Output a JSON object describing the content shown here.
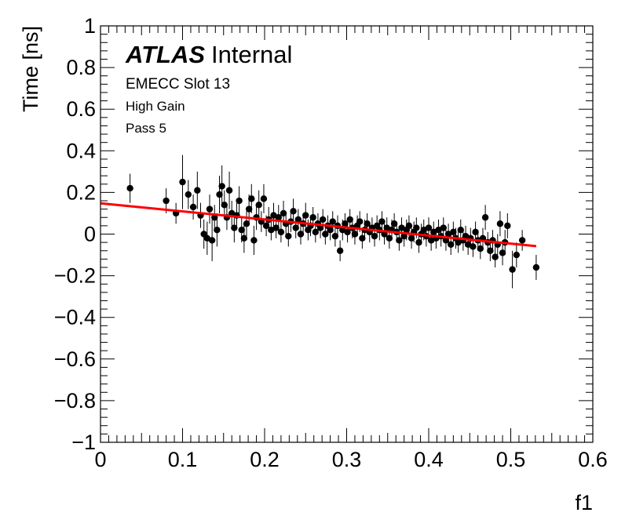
{
  "chart_data": {
    "type": "scatter",
    "title": "",
    "xlabel": "f1",
    "ylabel": "Time [ns]",
    "xlim": [
      0,
      0.6
    ],
    "ylim": [
      -1,
      1
    ],
    "x_ticks": [
      "0",
      "0.1",
      "0.2",
      "0.3",
      "0.4",
      "0.5",
      "0.6"
    ],
    "x_tick_values": [
      0,
      0.1,
      0.2,
      0.3,
      0.4,
      0.5,
      0.6
    ],
    "y_ticks": [
      "−1",
      "−0.8",
      "−0.6",
      "−0.4",
      "−0.2",
      "0",
      "0.2",
      "0.4",
      "0.6",
      "0.8",
      "1"
    ],
    "y_tick_values": [
      -1,
      -0.8,
      -0.6,
      -0.4,
      -0.2,
      0,
      0.2,
      0.4,
      0.6,
      0.8,
      1
    ],
    "annotations": {
      "experiment": "ATLAS",
      "status": "Internal",
      "line1": "EMECC Slot 13",
      "line2": "High Gain",
      "line3": "Pass 5"
    },
    "series": [
      {
        "name": "data",
        "marker_color": "#000000",
        "points": [
          {
            "x": 0.036,
            "y": 0.22,
            "err": 0.07
          },
          {
            "x": 0.08,
            "y": 0.16,
            "err": 0.06
          },
          {
            "x": 0.092,
            "y": 0.1,
            "err": 0.05
          },
          {
            "x": 0.1,
            "y": 0.25,
            "err": 0.13
          },
          {
            "x": 0.107,
            "y": 0.19,
            "err": 0.07
          },
          {
            "x": 0.113,
            "y": 0.13,
            "err": 0.06
          },
          {
            "x": 0.118,
            "y": 0.21,
            "err": 0.09
          },
          {
            "x": 0.122,
            "y": 0.09,
            "err": 0.06
          },
          {
            "x": 0.126,
            "y": 0.0,
            "err": 0.07
          },
          {
            "x": 0.13,
            "y": -0.02,
            "err": 0.08
          },
          {
            "x": 0.133,
            "y": 0.12,
            "err": 0.07
          },
          {
            "x": 0.136,
            "y": -0.03,
            "err": 0.1
          },
          {
            "x": 0.139,
            "y": 0.08,
            "err": 0.06
          },
          {
            "x": 0.142,
            "y": 0.02,
            "err": 0.08
          },
          {
            "x": 0.145,
            "y": 0.19,
            "err": 0.09
          },
          {
            "x": 0.148,
            "y": 0.23,
            "err": 0.1
          },
          {
            "x": 0.151,
            "y": 0.14,
            "err": 0.07
          },
          {
            "x": 0.154,
            "y": 0.08,
            "err": 0.06
          },
          {
            "x": 0.157,
            "y": 0.21,
            "err": 0.09
          },
          {
            "x": 0.16,
            "y": 0.1,
            "err": 0.06
          },
          {
            "x": 0.163,
            "y": 0.03,
            "err": 0.07
          },
          {
            "x": 0.166,
            "y": 0.09,
            "err": 0.06
          },
          {
            "x": 0.169,
            "y": 0.16,
            "err": 0.07
          },
          {
            "x": 0.172,
            "y": 0.02,
            "err": 0.06
          },
          {
            "x": 0.175,
            "y": -0.02,
            "err": 0.07
          },
          {
            "x": 0.178,
            "y": 0.05,
            "err": 0.06
          },
          {
            "x": 0.181,
            "y": 0.12,
            "err": 0.07
          },
          {
            "x": 0.184,
            "y": 0.17,
            "err": 0.07
          },
          {
            "x": 0.187,
            "y": -0.03,
            "err": 0.07
          },
          {
            "x": 0.19,
            "y": 0.08,
            "err": 0.06
          },
          {
            "x": 0.193,
            "y": 0.14,
            "err": 0.07
          },
          {
            "x": 0.196,
            "y": 0.06,
            "err": 0.05
          },
          {
            "x": 0.199,
            "y": 0.17,
            "err": 0.07
          },
          {
            "x": 0.202,
            "y": 0.04,
            "err": 0.05
          },
          {
            "x": 0.205,
            "y": 0.07,
            "err": 0.06
          },
          {
            "x": 0.208,
            "y": 0.02,
            "err": 0.05
          },
          {
            "x": 0.211,
            "y": 0.09,
            "err": 0.06
          },
          {
            "x": 0.214,
            "y": 0.03,
            "err": 0.05
          },
          {
            "x": 0.217,
            "y": 0.08,
            "err": 0.06
          },
          {
            "x": 0.22,
            "y": 0.01,
            "err": 0.05
          },
          {
            "x": 0.223,
            "y": 0.1,
            "err": 0.06
          },
          {
            "x": 0.226,
            "y": 0.05,
            "err": 0.05
          },
          {
            "x": 0.229,
            "y": -0.01,
            "err": 0.05
          },
          {
            "x": 0.232,
            "y": 0.06,
            "err": 0.05
          },
          {
            "x": 0.235,
            "y": 0.11,
            "err": 0.06
          },
          {
            "x": 0.238,
            "y": 0.03,
            "err": 0.05
          },
          {
            "x": 0.241,
            "y": 0.07,
            "err": 0.05
          },
          {
            "x": 0.244,
            "y": 0.0,
            "err": 0.05
          },
          {
            "x": 0.247,
            "y": 0.05,
            "err": 0.05
          },
          {
            "x": 0.25,
            "y": 0.09,
            "err": 0.06
          },
          {
            "x": 0.253,
            "y": 0.02,
            "err": 0.05
          },
          {
            "x": 0.256,
            "y": 0.04,
            "err": 0.05
          },
          {
            "x": 0.259,
            "y": 0.08,
            "err": 0.05
          },
          {
            "x": 0.262,
            "y": 0.01,
            "err": 0.05
          },
          {
            "x": 0.265,
            "y": 0.05,
            "err": 0.05
          },
          {
            "x": 0.268,
            "y": 0.03,
            "err": 0.05
          },
          {
            "x": 0.271,
            "y": 0.07,
            "err": 0.05
          },
          {
            "x": 0.274,
            "y": 0.0,
            "err": 0.05
          },
          {
            "x": 0.277,
            "y": 0.04,
            "err": 0.05
          },
          {
            "x": 0.28,
            "y": 0.02,
            "err": 0.05
          },
          {
            "x": 0.283,
            "y": 0.06,
            "err": 0.05
          },
          {
            "x": 0.286,
            "y": -0.01,
            "err": 0.05
          },
          {
            "x": 0.289,
            "y": 0.04,
            "err": 0.05
          },
          {
            "x": 0.292,
            "y": -0.08,
            "err": 0.05
          },
          {
            "x": 0.295,
            "y": 0.02,
            "err": 0.05
          },
          {
            "x": 0.298,
            "y": 0.05,
            "err": 0.05
          },
          {
            "x": 0.301,
            "y": 0.01,
            "err": 0.05
          },
          {
            "x": 0.304,
            "y": 0.07,
            "err": 0.05
          },
          {
            "x": 0.307,
            "y": 0.03,
            "err": 0.05
          },
          {
            "x": 0.31,
            "y": 0.0,
            "err": 0.05
          },
          {
            "x": 0.313,
            "y": 0.04,
            "err": 0.05
          },
          {
            "x": 0.316,
            "y": 0.06,
            "err": 0.05
          },
          {
            "x": 0.319,
            "y": -0.02,
            "err": 0.05
          },
          {
            "x": 0.322,
            "y": 0.02,
            "err": 0.05
          },
          {
            "x": 0.325,
            "y": 0.05,
            "err": 0.05
          },
          {
            "x": 0.328,
            "y": 0.01,
            "err": 0.05
          },
          {
            "x": 0.331,
            "y": 0.03,
            "err": 0.05
          },
          {
            "x": 0.334,
            "y": -0.01,
            "err": 0.05
          },
          {
            "x": 0.337,
            "y": 0.04,
            "err": 0.05
          },
          {
            "x": 0.34,
            "y": 0.02,
            "err": 0.05
          },
          {
            "x": 0.343,
            "y": 0.06,
            "err": 0.05
          },
          {
            "x": 0.346,
            "y": 0.0,
            "err": 0.05
          },
          {
            "x": 0.349,
            "y": 0.03,
            "err": 0.05
          },
          {
            "x": 0.352,
            "y": -0.02,
            "err": 0.05
          },
          {
            "x": 0.355,
            "y": 0.02,
            "err": 0.05
          },
          {
            "x": 0.358,
            "y": 0.05,
            "err": 0.05
          },
          {
            "x": 0.361,
            "y": 0.01,
            "err": 0.05
          },
          {
            "x": 0.364,
            "y": -0.03,
            "err": 0.05
          },
          {
            "x": 0.367,
            "y": 0.03,
            "err": 0.05
          },
          {
            "x": 0.37,
            "y": -0.01,
            "err": 0.05
          },
          {
            "x": 0.373,
            "y": 0.02,
            "err": 0.05
          },
          {
            "x": 0.376,
            "y": 0.04,
            "err": 0.05
          },
          {
            "x": 0.379,
            "y": -0.02,
            "err": 0.05
          },
          {
            "x": 0.382,
            "y": 0.01,
            "err": 0.05
          },
          {
            "x": 0.385,
            "y": 0.03,
            "err": 0.05
          },
          {
            "x": 0.388,
            "y": -0.04,
            "err": 0.05
          },
          {
            "x": 0.391,
            "y": 0.0,
            "err": 0.05
          },
          {
            "x": 0.394,
            "y": 0.02,
            "err": 0.05
          },
          {
            "x": 0.397,
            "y": -0.01,
            "err": 0.05
          },
          {
            "x": 0.4,
            "y": 0.03,
            "err": 0.05
          },
          {
            "x": 0.403,
            "y": -0.03,
            "err": 0.05
          },
          {
            "x": 0.406,
            "y": 0.01,
            "err": 0.05
          },
          {
            "x": 0.409,
            "y": -0.02,
            "err": 0.05
          },
          {
            "x": 0.412,
            "y": 0.02,
            "err": 0.05
          },
          {
            "x": 0.415,
            "y": -0.01,
            "err": 0.05
          },
          {
            "x": 0.418,
            "y": 0.03,
            "err": 0.05
          },
          {
            "x": 0.421,
            "y": -0.03,
            "err": 0.05
          },
          {
            "x": 0.424,
            "y": 0.0,
            "err": 0.05
          },
          {
            "x": 0.427,
            "y": -0.05,
            "err": 0.05
          },
          {
            "x": 0.43,
            "y": 0.01,
            "err": 0.05
          },
          {
            "x": 0.433,
            "y": -0.02,
            "err": 0.05
          },
          {
            "x": 0.436,
            "y": -0.04,
            "err": 0.05
          },
          {
            "x": 0.439,
            "y": 0.02,
            "err": 0.05
          },
          {
            "x": 0.442,
            "y": -0.03,
            "err": 0.05
          },
          {
            "x": 0.445,
            "y": -0.01,
            "err": 0.05
          },
          {
            "x": 0.448,
            "y": -0.05,
            "err": 0.05
          },
          {
            "x": 0.451,
            "y": -0.02,
            "err": 0.05
          },
          {
            "x": 0.454,
            "y": -0.06,
            "err": 0.05
          },
          {
            "x": 0.457,
            "y": 0.01,
            "err": 0.05
          },
          {
            "x": 0.46,
            "y": -0.03,
            "err": 0.05
          },
          {
            "x": 0.463,
            "y": -0.07,
            "err": 0.05
          },
          {
            "x": 0.466,
            "y": -0.02,
            "err": 0.05
          },
          {
            "x": 0.469,
            "y": 0.08,
            "err": 0.06
          },
          {
            "x": 0.472,
            "y": -0.04,
            "err": 0.05
          },
          {
            "x": 0.475,
            "y": -0.08,
            "err": 0.05
          },
          {
            "x": 0.478,
            "y": -0.03,
            "err": 0.05
          },
          {
            "x": 0.481,
            "y": -0.11,
            "err": 0.05
          },
          {
            "x": 0.484,
            "y": -0.05,
            "err": 0.05
          },
          {
            "x": 0.487,
            "y": 0.05,
            "err": 0.06
          },
          {
            "x": 0.49,
            "y": -0.09,
            "err": 0.06
          },
          {
            "x": 0.493,
            "y": -0.04,
            "err": 0.06
          },
          {
            "x": 0.496,
            "y": 0.04,
            "err": 0.06
          },
          {
            "x": 0.502,
            "y": -0.17,
            "err": 0.09
          },
          {
            "x": 0.507,
            "y": -0.1,
            "err": 0.06
          },
          {
            "x": 0.514,
            "y": -0.03,
            "err": 0.05
          },
          {
            "x": 0.531,
            "y": -0.16,
            "err": 0.06
          }
        ]
      }
    ],
    "fit": {
      "type": "linear",
      "color": "#ff0000",
      "x_range": [
        0,
        0.531
      ],
      "y_values": [
        0.148,
        -0.058
      ]
    }
  }
}
